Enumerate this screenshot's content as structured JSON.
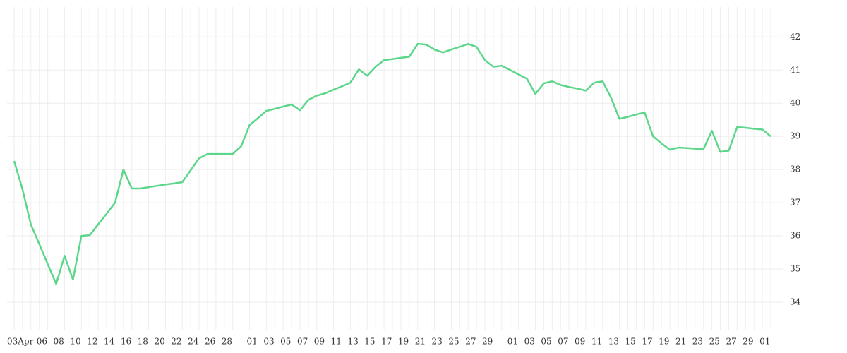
{
  "chart_data": {
    "type": "line",
    "categories": [
      "03Apr",
      null,
      null,
      "06",
      null,
      "08",
      null,
      "10",
      null,
      "12",
      null,
      "14",
      null,
      "16",
      null,
      "18",
      null,
      "20",
      null,
      "22",
      null,
      "24",
      null,
      "26",
      null,
      "28",
      null,
      null,
      "01",
      null,
      "03",
      null,
      "05",
      null,
      "07",
      null,
      "09",
      null,
      "11",
      null,
      "13",
      null,
      "15",
      null,
      "17",
      null,
      "19",
      null,
      "21",
      null,
      "23",
      null,
      "25",
      null,
      "27",
      null,
      "29",
      null,
      null,
      "01",
      null,
      "03",
      null,
      "05",
      null,
      "07",
      null,
      "09",
      null,
      "11",
      null,
      "13",
      null,
      "15",
      null,
      "17",
      null,
      "19",
      null,
      "21",
      null,
      "23",
      null,
      "25",
      null,
      "27",
      null,
      "29",
      null,
      "01",
      null
    ],
    "series": [
      {
        "color": "#5cd68a",
        "values": [
          38.26,
          37.4,
          36.34,
          35.75,
          35.15,
          34.55,
          35.4,
          34.68,
          36.0,
          36.02,
          36.35,
          36.67,
          37.0,
          38.0,
          37.43,
          37.43,
          37.47,
          37.51,
          37.55,
          37.58,
          37.62,
          37.98,
          38.34,
          38.47,
          38.47,
          38.47,
          38.47,
          38.7,
          39.34,
          39.55,
          39.77,
          39.83,
          39.9,
          39.96,
          39.79,
          40.1,
          40.23,
          40.3,
          40.41,
          40.51,
          40.62,
          41.02,
          40.83,
          41.1,
          41.3,
          41.33,
          41.37,
          41.4,
          41.79,
          41.77,
          41.62,
          41.53,
          41.62,
          41.7,
          41.79,
          41.7,
          41.3,
          41.1,
          41.13,
          41.0,
          40.87,
          40.74,
          40.28,
          40.6,
          40.66,
          40.55,
          40.49,
          40.44,
          40.38,
          40.62,
          40.66,
          40.17,
          39.53,
          39.59,
          39.66,
          39.72,
          39.0,
          38.79,
          38.6,
          38.66,
          38.65,
          38.63,
          38.62,
          39.17,
          38.53,
          38.57,
          39.28,
          39.26,
          39.23,
          39.21,
          39.0
        ]
      }
    ],
    "ylim": [
      33.15,
      42.9
    ],
    "yticks": [
      34,
      35,
      36,
      37,
      38,
      39,
      40,
      41,
      42
    ],
    "grid": true
  }
}
